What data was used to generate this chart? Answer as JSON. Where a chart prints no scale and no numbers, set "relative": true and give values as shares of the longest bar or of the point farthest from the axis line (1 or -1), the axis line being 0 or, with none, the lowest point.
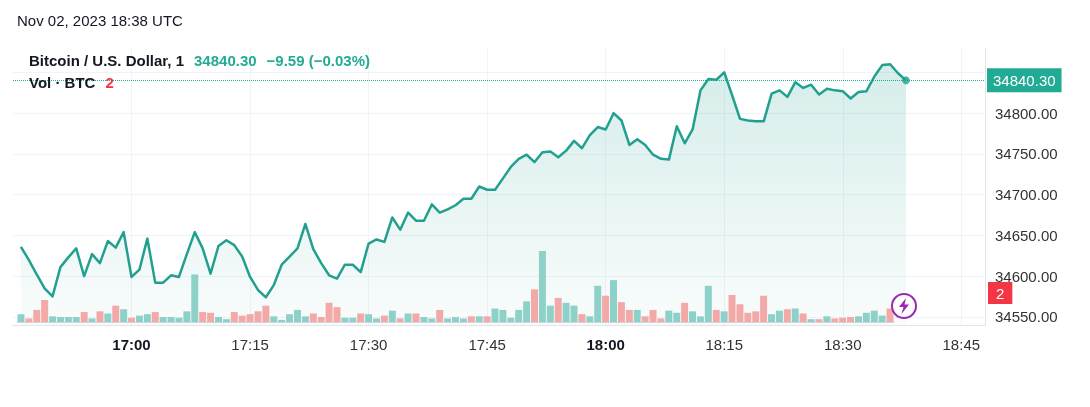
{
  "chart_data": [
    {
      "type": "area",
      "title": "Bitcoin / U.S. Dollar, 1",
      "annotations": [
        "34840.30",
        "−9.59 (−0.03%)",
        "Nov 02, 2023 18:38 UTC"
      ],
      "x": [
        "2023-11-02T16:46",
        "2023-11-02T16:47",
        "2023-11-02T16:48",
        "2023-11-02T16:49",
        "2023-11-02T16:50",
        "2023-11-02T16:51",
        "2023-11-02T16:52",
        "2023-11-02T16:53",
        "2023-11-02T16:54",
        "2023-11-02T16:55",
        "2023-11-02T16:56",
        "2023-11-02T16:57",
        "2023-11-02T16:58",
        "2023-11-02T16:59",
        "2023-11-02T17:00",
        "2023-11-02T17:01",
        "2023-11-02T17:02",
        "2023-11-02T17:03",
        "2023-11-02T17:04",
        "2023-11-02T17:05",
        "2023-11-02T17:06",
        "2023-11-02T17:07",
        "2023-11-02T17:08",
        "2023-11-02T17:09",
        "2023-11-02T17:10",
        "2023-11-02T17:11",
        "2023-11-02T17:12",
        "2023-11-02T17:13",
        "2023-11-02T17:14",
        "2023-11-02T17:15",
        "2023-11-02T17:16",
        "2023-11-02T17:17",
        "2023-11-02T17:18",
        "2023-11-02T17:19",
        "2023-11-02T17:20",
        "2023-11-02T17:21",
        "2023-11-02T17:22",
        "2023-11-02T17:23",
        "2023-11-02T17:24",
        "2023-11-02T17:25",
        "2023-11-02T17:26",
        "2023-11-02T17:27",
        "2023-11-02T17:28",
        "2023-11-02T17:29",
        "2023-11-02T17:30",
        "2023-11-02T17:31",
        "2023-11-02T17:32",
        "2023-11-02T17:33",
        "2023-11-02T17:34",
        "2023-11-02T17:35",
        "2023-11-02T17:36",
        "2023-11-02T17:37",
        "2023-11-02T17:38",
        "2023-11-02T17:39",
        "2023-11-02T17:40",
        "2023-11-02T17:41",
        "2023-11-02T17:42",
        "2023-11-02T17:43",
        "2023-11-02T17:44",
        "2023-11-02T17:45",
        "2023-11-02T17:46",
        "2023-11-02T17:47",
        "2023-11-02T17:48",
        "2023-11-02T17:49",
        "2023-11-02T17:50",
        "2023-11-02T17:51",
        "2023-11-02T17:52",
        "2023-11-02T17:53",
        "2023-11-02T17:54",
        "2023-11-02T17:55",
        "2023-11-02T17:56",
        "2023-11-02T17:57",
        "2023-11-02T17:58",
        "2023-11-02T17:59",
        "2023-11-02T18:00",
        "2023-11-02T18:01",
        "2023-11-02T18:02",
        "2023-11-02T18:03",
        "2023-11-02T18:04",
        "2023-11-02T18:05",
        "2023-11-02T18:06",
        "2023-11-02T18:07",
        "2023-11-02T18:08",
        "2023-11-02T18:09",
        "2023-11-02T18:10",
        "2023-11-02T18:11",
        "2023-11-02T18:12",
        "2023-11-02T18:13",
        "2023-11-02T18:14",
        "2023-11-02T18:15",
        "2023-11-02T18:16",
        "2023-11-02T18:17",
        "2023-11-02T18:18",
        "2023-11-02T18:19",
        "2023-11-02T18:20",
        "2023-11-02T18:21",
        "2023-11-02T18:22",
        "2023-11-02T18:23",
        "2023-11-02T18:24",
        "2023-11-02T18:25",
        "2023-11-02T18:26",
        "2023-11-02T18:27",
        "2023-11-02T18:28",
        "2023-11-02T18:29",
        "2023-11-02T18:30",
        "2023-11-02T18:31",
        "2023-11-02T18:32",
        "2023-11-02T18:33",
        "2023-11-02T18:34",
        "2023-11-02T18:35",
        "2023-11-02T18:36",
        "2023-11-02T18:37",
        "2023-11-02T18:38"
      ],
      "series": [
        {
          "color": "#22a08f",
          "values": [
            34636,
            34620,
            34602,
            34585,
            34575,
            34611,
            34623,
            34634,
            34600,
            34627,
            34616,
            34643,
            34635,
            34654,
            34599,
            34608,
            34646,
            34592,
            34592,
            34601,
            34599,
            34627,
            34654,
            34634,
            34603,
            34637,
            34644,
            34638,
            34624,
            34599,
            34583,
            34574,
            34589,
            34614,
            34624,
            34634,
            34664,
            34633,
            34616,
            34601,
            34597,
            34614,
            34614,
            34605,
            34640,
            34645,
            34642,
            34672,
            34657,
            34678,
            34668,
            34668,
            34688,
            34678,
            34682,
            34687,
            34695,
            34695,
            34710,
            34706,
            34706,
            34720,
            34734,
            34744,
            34749,
            34740,
            34752,
            34753,
            34746,
            34754,
            34766,
            34757,
            34773,
            34783,
            34780,
            34800,
            34791,
            34761,
            34768,
            34761,
            34749,
            34744,
            34743,
            34784,
            34763,
            34780,
            34828,
            34842,
            34841,
            34850,
            34822,
            34793,
            34791,
            34790,
            34790,
            34824,
            34828,
            34820,
            34838,
            34831,
            34835,
            34823,
            34830,
            34828,
            34827,
            34818,
            34826,
            34827,
            34845,
            34859,
            34860,
            34849,
            34840.3
          ]
        }
      ],
      "xlim": [
        "2023-11-02T16:45",
        "2023-11-02T18:48"
      ],
      "xticks": [
        {
          "value": "2023-11-02T17:00",
          "label": "17:00"
        },
        {
          "value": "2023-11-02T17:15",
          "label": "17:15"
        },
        {
          "value": "2023-11-02T17:30",
          "label": "17:30"
        },
        {
          "value": "2023-11-02T17:45",
          "label": "17:45"
        },
        {
          "value": "2023-11-02T18:00",
          "label": "18:00"
        },
        {
          "value": "2023-11-02T18:15",
          "label": "18:15"
        },
        {
          "value": "2023-11-02T18:30",
          "label": "18:30"
        },
        {
          "value": "2023-11-02T18:45",
          "label": "18:45"
        }
      ],
      "ylim": [
        34540,
        34880
      ],
      "yticks": [
        {
          "value": 34550,
          "label": "34550.00"
        },
        {
          "value": 34600,
          "label": "34600.00"
        },
        {
          "value": 34650,
          "label": "34650.00"
        },
        {
          "value": 34700,
          "label": "34700.00"
        },
        {
          "value": 34750,
          "label": "34750.00"
        },
        {
          "value": 34800,
          "label": "34800.00"
        },
        {
          "value": 34850,
          "label": null
        }
      ],
      "ref_lines": [
        {
          "axis": "y",
          "value": 34840.3,
          "label": "34840.30",
          "color": "#22ab94",
          "line_style": "dotted"
        }
      ],
      "grid": true
    },
    {
      "type": "bar",
      "relative": true,
      "title": "Vol · BTC",
      "annotations": [
        "2",
        "2"
      ],
      "categories": [
        null,
        null,
        null,
        null,
        null,
        null,
        null,
        null,
        null,
        null,
        null,
        null,
        null,
        null,
        null,
        null,
        null,
        null,
        null,
        null,
        null,
        null,
        null,
        null,
        null,
        null,
        null,
        null,
        null,
        null,
        null,
        null,
        null,
        null,
        null,
        null,
        null,
        null,
        null,
        null,
        null,
        null,
        null,
        null,
        null,
        null,
        null,
        null,
        null,
        null,
        null,
        null,
        null,
        null,
        null,
        null,
        null,
        null,
        null,
        null,
        null,
        null,
        null,
        null,
        null,
        null,
        null,
        null,
        null,
        null,
        null,
        null,
        null,
        null,
        null,
        null,
        null,
        null,
        null,
        null,
        null,
        null,
        null,
        null,
        null,
        null,
        null,
        null,
        null,
        null,
        null,
        null,
        null,
        null,
        null,
        null,
        null,
        null,
        null,
        null,
        null,
        null,
        null,
        null,
        null,
        null,
        null,
        null,
        null,
        null,
        null
      ],
      "values": [
        0.11,
        0.05,
        0.17,
        0.31,
        0.08,
        0.07,
        0.07,
        0.07,
        0.14,
        0.05,
        0.15,
        0.12,
        0.23,
        0.18,
        0.06,
        0.09,
        0.11,
        0.14,
        0.07,
        0.07,
        0.06,
        0.15,
        0.67,
        0.14,
        0.13,
        0.07,
        0.04,
        0.14,
        0.09,
        0.11,
        0.15,
        0.23,
        0.08,
        0.03,
        0.11,
        0.17,
        0.08,
        0.12,
        0.07,
        0.27,
        0.21,
        0.06,
        0.06,
        0.12,
        0.11,
        0.05,
        0.09,
        0.16,
        0.05,
        0.12,
        0.12,
        0.07,
        0.05,
        0.17,
        0.05,
        0.07,
        0.05,
        0.08,
        0.08,
        0.08,
        0.19,
        0.17,
        0.06,
        0.17,
        0.29,
        0.46,
        1,
        0.23,
        0.34,
        0.27,
        0.23,
        0.11,
        0.08,
        0.51,
        0.37,
        0.59,
        0.28,
        0.17,
        0.17,
        0.08,
        0.17,
        0.05,
        0.16,
        0.13,
        0.27,
        0.15,
        0.08,
        0.51,
        0.17,
        0.15,
        0.38,
        0.25,
        0.13,
        0.15,
        0.37,
        0.11,
        0.16,
        0.18,
        0.19,
        0.12,
        0.04,
        0.04,
        0.08,
        0.05,
        0.06,
        0.07,
        0.08,
        0.13,
        0.16,
        0.09,
        0.19
      ],
      "colors": [
        "#8ed1c9",
        "#f2a9a7",
        "#f2a9a7",
        "#f2a9a7",
        "#8ed1c9",
        "#8ed1c9",
        "#8ed1c9",
        "#8ed1c9",
        "#f2a9a7",
        "#8ed1c9",
        "#f2a9a7",
        "#8ed1c9",
        "#f2a9a7",
        "#8ed1c9",
        "#f2a9a7",
        "#8ed1c9",
        "#8ed1c9",
        "#f2a9a7",
        "#8ed1c9",
        "#8ed1c9",
        "#8ed1c9",
        "#8ed1c9",
        "#8ed1c9",
        "#f2a9a7",
        "#f2a9a7",
        "#8ed1c9",
        "#8ed1c9",
        "#f2a9a7",
        "#f2a9a7",
        "#f2a9a7",
        "#f2a9a7",
        "#f2a9a7",
        "#8ed1c9",
        "#8ed1c9",
        "#8ed1c9",
        "#8ed1c9",
        "#8ed1c9",
        "#f2a9a7",
        "#f2a9a7",
        "#f2a9a7",
        "#f2a9a7",
        "#8ed1c9",
        "#8ed1c9",
        "#f2a9a7",
        "#8ed1c9",
        "#8ed1c9",
        "#f2a9a7",
        "#8ed1c9",
        "#f2a9a7",
        "#8ed1c9",
        "#f2a9a7",
        "#8ed1c9",
        "#8ed1c9",
        "#f2a9a7",
        "#8ed1c9",
        "#8ed1c9",
        "#8ed1c9",
        "#f2a9a7",
        "#8ed1c9",
        "#f2a9a7",
        "#8ed1c9",
        "#8ed1c9",
        "#8ed1c9",
        "#8ed1c9",
        "#8ed1c9",
        "#f2a9a7",
        "#8ed1c9",
        "#8ed1c9",
        "#f2a9a7",
        "#8ed1c9",
        "#8ed1c9",
        "#f2a9a7",
        "#8ed1c9",
        "#8ed1c9",
        "#f2a9a7",
        "#8ed1c9",
        "#f2a9a7",
        "#f2a9a7",
        "#8ed1c9",
        "#f2a9a7",
        "#f2a9a7",
        "#f2a9a7",
        "#8ed1c9",
        "#8ed1c9",
        "#f2a9a7",
        "#8ed1c9",
        "#8ed1c9",
        "#8ed1c9",
        "#f2a9a7",
        "#8ed1c9",
        "#f2a9a7",
        "#f2a9a7",
        "#f2a9a7",
        "#f2a9a7",
        "#f2a9a7",
        "#8ed1c9",
        "#8ed1c9",
        "#f2a9a7",
        "#8ed1c9",
        "#f2a9a7",
        "#8ed1c9",
        "#f2a9a7",
        "#8ed1c9",
        "#f2a9a7",
        "#f2a9a7",
        "#f2a9a7",
        "#8ed1c9",
        "#8ed1c9",
        "#8ed1c9",
        "#8ed1c9",
        "#f2a9a7"
      ]
    }
  ]
}
